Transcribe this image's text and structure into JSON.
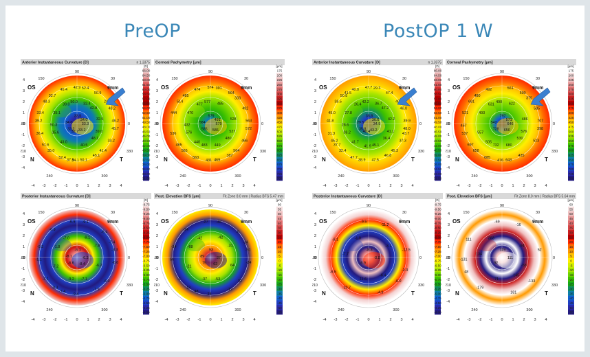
{
  "titles": {
    "pre": "PreOP",
    "post": "PostOP 1 W"
  },
  "panels": [
    {
      "title": "Anterior Instantaneous Curvature [D]",
      "meta": "n 1.3375",
      "eye": "OS",
      "zone": "9mm",
      "legend_unit": "[D]",
      "legend": [
        "66.00",
        "64.50",
        "63.00",
        "61.50",
        "60.00",
        "58.50",
        "57.00",
        "55.50",
        "54.00",
        "52.50",
        "51.00",
        "49.50",
        "48.00",
        "46.50",
        "45.00",
        "43.50",
        "42.00",
        "40.50",
        "39.00",
        "37.50",
        "36.00",
        "34.50",
        "33.00",
        "31.50"
      ],
      "legend_colors": [
        "#e8c8c8",
        "#e8b0b0",
        "#e48a8a",
        "#df5e5e",
        "#d83030",
        "#cc1010",
        "#b80000",
        "#a00000",
        "#ff2a00",
        "#ff6a00",
        "#ff9a00",
        "#ffc400",
        "#ffee00",
        "#d6f000",
        "#a8e400",
        "#70d400",
        "#3cc000",
        "#18a818",
        "#108f60",
        "#0e7fa8",
        "#1060d0",
        "#1f3fc4",
        "#2a28a8",
        "#221a80"
      ],
      "values": [
        "33.3",
        "32.2",
        "33.5",
        "33.2",
        "34.0",
        "34.0",
        "32.7",
        "39.0",
        "39.0",
        "35.6",
        "32.4",
        "40.5",
        "35.1",
        "32.5",
        "43.0",
        "50.0",
        "48.1",
        "50.3",
        "42.8",
        "34.1",
        "32.7",
        "45.7",
        "51.6",
        "52.4",
        "45.1",
        "33.4",
        "48.2",
        "52.4",
        "45.4",
        "33.2",
        "36.4",
        "50.9",
        "50.1",
        "48.3",
        "46.2",
        "35.0",
        "42.9",
        "41.4",
        "39.2",
        "29.7",
        "37.5"
      ],
      "arrow": true
    },
    {
      "title": "Corneal Pachymetry [μm]",
      "meta": "",
      "eye": "OS",
      "zone": "9mm",
      "legend_unit": "[μm]",
      "legend": [
        "175",
        "200",
        "225",
        "250",
        "275",
        "300",
        "325",
        "350",
        "375",
        "400",
        "425",
        "450",
        "475",
        "500",
        "525",
        "550",
        "575",
        "600",
        "625",
        "650",
        "675",
        "700",
        "725",
        "750"
      ],
      "legend_colors": [
        "#ffffff",
        "#f5dede",
        "#eec0c0",
        "#e89a9a",
        "#e07070",
        "#d84848",
        "#cc2020",
        "#b80000",
        "#ff2a00",
        "#ff6a00",
        "#ff9a00",
        "#ffc400",
        "#ffee00",
        "#d6f000",
        "#a8e400",
        "#70d400",
        "#3cc000",
        "#18a818",
        "#108f60",
        "#0e7fa8",
        "#1060d0",
        "#1f3fc4",
        "#2a28a8",
        "#221a80"
      ],
      "values": [
        "579",
        "585",
        "579",
        "586",
        "584",
        "491",
        "483",
        "477",
        "527",
        "576",
        "485",
        "449",
        "470",
        "528",
        "440",
        "577",
        "480",
        "432",
        "333",
        "431",
        "485",
        "572",
        "465",
        "391",
        "387",
        "444",
        "492",
        "563",
        "474",
        "466",
        "536",
        "564",
        "469",
        "514",
        "563",
        "565",
        "574",
        "564"
      ],
      "arrow": false
    },
    {
      "title": "Posterior Instantaneous Curvature [D]",
      "meta": "",
      "eye": "OS",
      "zone": "9mm",
      "legend_unit": "[D]",
      "legend": [
        "-9.75",
        "-9.50",
        "-9.25",
        "-9.00",
        "-8.75",
        "-8.50",
        "-8.25",
        "-8.00",
        "-7.75",
        "-7.50",
        "-7.25",
        "-7.00",
        "-6.75",
        "-6.50",
        "-6.25",
        "-6.00",
        "-5.75",
        "-5.50",
        "-5.25",
        "-5.00",
        "-4.75",
        "-4.50",
        "-4.25",
        "-4.00"
      ],
      "legend_colors": [
        "#f3e4e4",
        "#eecaca",
        "#e9a9a9",
        "#e48585",
        "#dc5a5a",
        "#d43232",
        "#c81010",
        "#b00000",
        "#ff2a00",
        "#ff6a00",
        "#ff9a00",
        "#ffc400",
        "#ffee00",
        "#d6f000",
        "#a8e400",
        "#70d400",
        "#3cc000",
        "#18a818",
        "#108f60",
        "#0e7fa8",
        "#1060d0",
        "#1f3fc4",
        "#2a28a8",
        "#221a80"
      ],
      "values": [
        "-6.5",
        "-6.6",
        "-6.1",
        "-8.4",
        "-8.1",
        "-7.8",
        "-9.2",
        "-7.0",
        "-6.2",
        "-7.2",
        "-9.1",
        "-7.1",
        "-1.8",
        "-3.3",
        "-9.3",
        "-6.9",
        "-6.0",
        "-1.1",
        "-6.4",
        "-9.4",
        "-6.9",
        "-6.6",
        "-3.1",
        "-9.1",
        "-7.5",
        "-9.2",
        "-7.4",
        "-7.4"
      ],
      "arrow": false
    },
    {
      "title": "Post. Elevation BFS [μm]",
      "meta": "Fit Zone 8.0 mm | Radius BFS 5.47 mm",
      "eye": "OS",
      "zone": "9mm",
      "legend_unit": "[μm]",
      "legend": [
        "60",
        "55",
        "50",
        "45",
        "40",
        "35",
        "30",
        "25",
        "20",
        "15",
        "10",
        "5",
        "0",
        "-5",
        "-10",
        "-15",
        "-20",
        "-25",
        "-30",
        "-35",
        "-40",
        "-45",
        "-50",
        "-55"
      ],
      "legend_colors": [
        "#ffffff",
        "#f5dede",
        "#eec0c0",
        "#e89a9a",
        "#e07070",
        "#d84848",
        "#cc2020",
        "#b80000",
        "#ff2a00",
        "#ff6a00",
        "#ff9a00",
        "#ffc400",
        "#ffee00",
        "#d6f000",
        "#a8e400",
        "#70d400",
        "#3cc000",
        "#18a818",
        "#108f60",
        "#0e7fa8",
        "#1060d0",
        "#1f3fc4",
        "#2a28a8",
        "#221a80"
      ],
      "values": [
        "87",
        "75",
        "93",
        "62",
        "89",
        "-31",
        "-37",
        "-42",
        "64",
        "-21",
        "-42",
        "-53",
        "-68",
        "-61",
        "13",
        "-27",
        "32",
        "56",
        "-5",
        "-23",
        "-24",
        "-24",
        "-2",
        "-43",
        "-12",
        "-34",
        "-14",
        "-48"
      ],
      "arrow": false
    },
    {
      "title": "Anterior Instantaneous Curvature [D]",
      "meta": "n 1.3375",
      "eye": "OS",
      "zone": "9mm",
      "legend_unit": "[D]",
      "legend": [
        "66.00",
        "64.50",
        "63.00",
        "61.50",
        "60.00",
        "58.50",
        "57.00",
        "55.50",
        "54.00",
        "52.50",
        "51.00",
        "49.50",
        "48.00",
        "46.50",
        "45.00",
        "43.50",
        "42.00",
        "40.50",
        "39.00",
        "37.50",
        "36.00",
        "34.50",
        "33.00",
        "31.50"
      ],
      "legend_colors": [
        "#e8c8c8",
        "#e8b0b0",
        "#e48a8a",
        "#df5e5e",
        "#d83030",
        "#cc1010",
        "#b80000",
        "#a00000",
        "#ff2a00",
        "#ff6a00",
        "#ff9a00",
        "#ffc400",
        "#ffee00",
        "#d6f000",
        "#a8e400",
        "#70d400",
        "#3cc000",
        "#18a818",
        "#108f60",
        "#0e7fa8",
        "#1060d0",
        "#1f3fc4",
        "#2a28a8",
        "#221a80"
      ],
      "values": [
        "34.9",
        "35.8",
        "38.8",
        "43.2",
        "29.5",
        "36.6",
        "40.4",
        "26.4",
        "41.1",
        "38.2",
        "36.7",
        "45.1",
        "27.8",
        "42.2",
        "41.7",
        "42.2",
        "36.4",
        "28.6",
        "47.2",
        "41.9",
        "50.8",
        "48.0",
        "37.7",
        "29.3",
        "46.8",
        "45.0",
        "46.0",
        "47.7",
        "40.0",
        "37.3",
        "31.3",
        "47.4",
        "47.5",
        "38.5",
        "39.9",
        "32.4",
        "47.7",
        "45.3",
        "41.8",
        "40.3",
        "38.9",
        "41.5",
        "43.7",
        "45.2"
      ],
      "arrow": true
    },
    {
      "title": "Corneal Pachymetry [μm]",
      "meta": "",
      "eye": "OS",
      "zone": "9mm",
      "legend_unit": "[μm]",
      "legend": [
        "175",
        "200",
        "225",
        "250",
        "275",
        "300",
        "325",
        "350",
        "375",
        "400",
        "425",
        "450",
        "475",
        "500",
        "525",
        "550",
        "575",
        "600",
        "625",
        "650",
        "675",
        "700",
        "725",
        "750"
      ],
      "legend_colors": [
        "#ffffff",
        "#f5dede",
        "#eec0c0",
        "#e89a9a",
        "#e07070",
        "#d84848",
        "#cc2020",
        "#b80000",
        "#ff2a00",
        "#ff6a00",
        "#ff9a00",
        "#ffc400",
        "#ffee00",
        "#d6f000",
        "#a8e400",
        "#70d400",
        "#3cc000",
        "#18a818",
        "#108f60",
        "#0e7fa8",
        "#1060d0",
        "#1f3fc4",
        "#2a28a8",
        "#221a80"
      ],
      "values": [
        "646",
        "728",
        "797",
        "650",
        "542",
        "571",
        "732",
        "631",
        "576",
        "557",
        "622",
        "680",
        "493",
        "486",
        "505",
        "490",
        "530",
        "457",
        "375",
        "476",
        "480",
        "398",
        "697",
        "561",
        "435",
        "521",
        "585",
        "685",
        "492",
        "523",
        "537",
        "590",
        "643",
        "681",
        "707",
        "658"
      ],
      "arrow": true
    },
    {
      "title": "Posterior Instantaneous Curvature [D]",
      "meta": "",
      "eye": "OS",
      "zone": "9mm",
      "legend_unit": "[D]",
      "legend": [
        "-9.75",
        "-9.50",
        "-9.25",
        "-9.00",
        "-8.75",
        "-8.50",
        "-8.25",
        "-8.00",
        "-7.75",
        "-7.50",
        "-7.25",
        "-7.00",
        "-6.75",
        "-6.50",
        "-6.25",
        "-6.00",
        "-5.75",
        "-5.50",
        "-5.25",
        "-5.00",
        "-4.75",
        "-4.50",
        "-4.25",
        "-4.00"
      ],
      "legend_colors": [
        "#f3e4e4",
        "#eecaca",
        "#e9a9a9",
        "#e48585",
        "#dc5a5a",
        "#d43232",
        "#c81010",
        "#b00000",
        "#ff2a00",
        "#ff6a00",
        "#ff9a00",
        "#ffc400",
        "#ffee00",
        "#d6f000",
        "#a8e400",
        "#70d400",
        "#3cc000",
        "#18a818",
        "#108f60",
        "#0e7fa8",
        "#1060d0",
        "#1f3fc4",
        "#2a28a8",
        "#221a80"
      ],
      "values": [
        "-8.8",
        "-6.9",
        "-8.3",
        "-6.4",
        "-7.7",
        "-3.1",
        "-11.6",
        "-1.0",
        "-2.3",
        "-6.5",
        "-11.2",
        "-4.9",
        "-8.1",
        "-12.5",
        "-10.7",
        "-9.5",
        "-6.0"
      ],
      "arrow": false
    },
    {
      "title": "Post. Elevation BFS [μm]",
      "meta": "Fit Zone 8.0 mm | Radius BFS 5.64 mm",
      "eye": "OS",
      "zone": "9mm",
      "legend_unit": "[μm]",
      "legend": [
        "60",
        "55",
        "50",
        "45",
        "40",
        "35",
        "30",
        "25",
        "20",
        "15",
        "10",
        "5",
        "0",
        "-5",
        "-10",
        "-15",
        "-20",
        "-25",
        "-30",
        "-35",
        "-40",
        "-45",
        "-50",
        "-55"
      ],
      "legend_colors": [
        "#ffffff",
        "#f5dede",
        "#eec0c0",
        "#e89a9a",
        "#e07070",
        "#d84848",
        "#cc2020",
        "#b80000",
        "#ff2a00",
        "#ff6a00",
        "#ff9a00",
        "#ffc400",
        "#ffee00",
        "#d6f000",
        "#a8e400",
        "#70d400",
        "#3cc000",
        "#18a818",
        "#108f60",
        "#0e7fa8",
        "#1060d0",
        "#1f3fc4",
        "#2a28a8",
        "#221a80"
      ],
      "values": [
        "111",
        "92",
        "119",
        "145",
        "134",
        "-94",
        "-71",
        "283",
        "-58",
        "48",
        "-16",
        "181",
        "111",
        "52",
        "-179",
        "-69",
        "-133",
        "-131"
      ],
      "arrow": false
    }
  ],
  "compass": {
    "top": "90",
    "left": "150",
    "right": "30",
    "bl": "240",
    "br": "300",
    "leftdeg": "180",
    "rightdeg": "0",
    "lsub": "210",
    "rsub": "330",
    "n": "N",
    "t": "T"
  },
  "axis_x": [
    "-4",
    "-3",
    "-2",
    "-1",
    "0",
    "1",
    "2",
    "3",
    "4"
  ],
  "axis_y": [
    "4",
    "3",
    "2",
    "1",
    "0",
    "-1",
    "-2",
    "-3",
    "-4"
  ]
}
